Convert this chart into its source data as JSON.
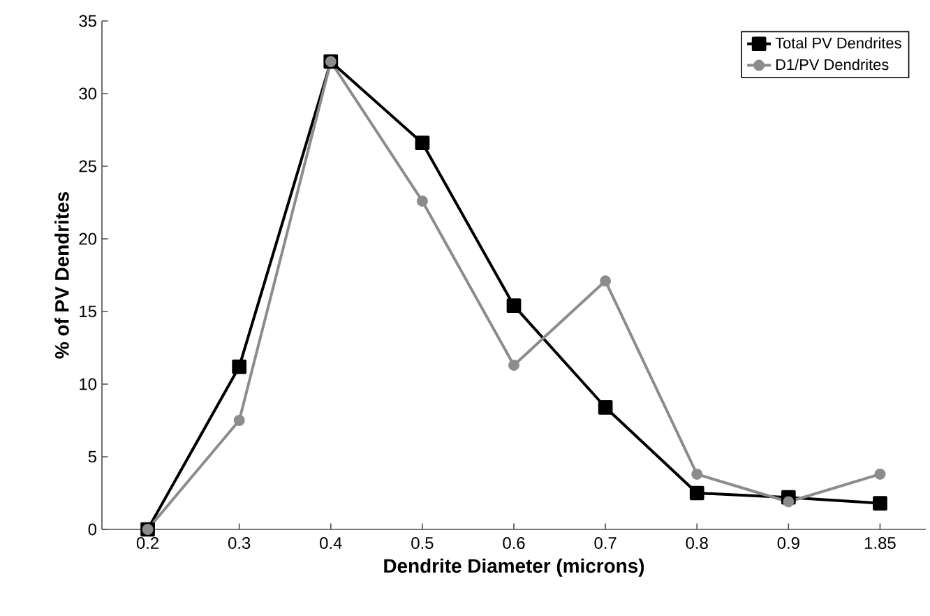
{
  "chart_data": {
    "type": "line",
    "xlabel": "Dendrite Diameter (microns)",
    "ylabel": "% of PV Dendrites",
    "categories": [
      "0.2",
      "0.3",
      "0.4",
      "0.5",
      "0.6",
      "0.7",
      "0.8",
      "0.9",
      "1.85"
    ],
    "series": [
      {
        "name": "Total PV Dendrites",
        "color": "#000000",
        "marker": "square",
        "values": [
          0,
          11.2,
          32.2,
          26.6,
          15.4,
          8.4,
          2.5,
          2.2,
          1.8
        ]
      },
      {
        "name": "D1/PV Dendrites",
        "color": "#8c8c8c",
        "marker": "circle",
        "values": [
          0,
          7.5,
          32.2,
          22.6,
          11.3,
          17.1,
          3.8,
          1.9,
          3.8
        ]
      }
    ],
    "ylim": [
      0,
      35
    ],
    "yticks": [
      0,
      5,
      10,
      15,
      20,
      25,
      30,
      35
    ],
    "grid": false,
    "legend": "top right",
    "line_style": "solid"
  }
}
